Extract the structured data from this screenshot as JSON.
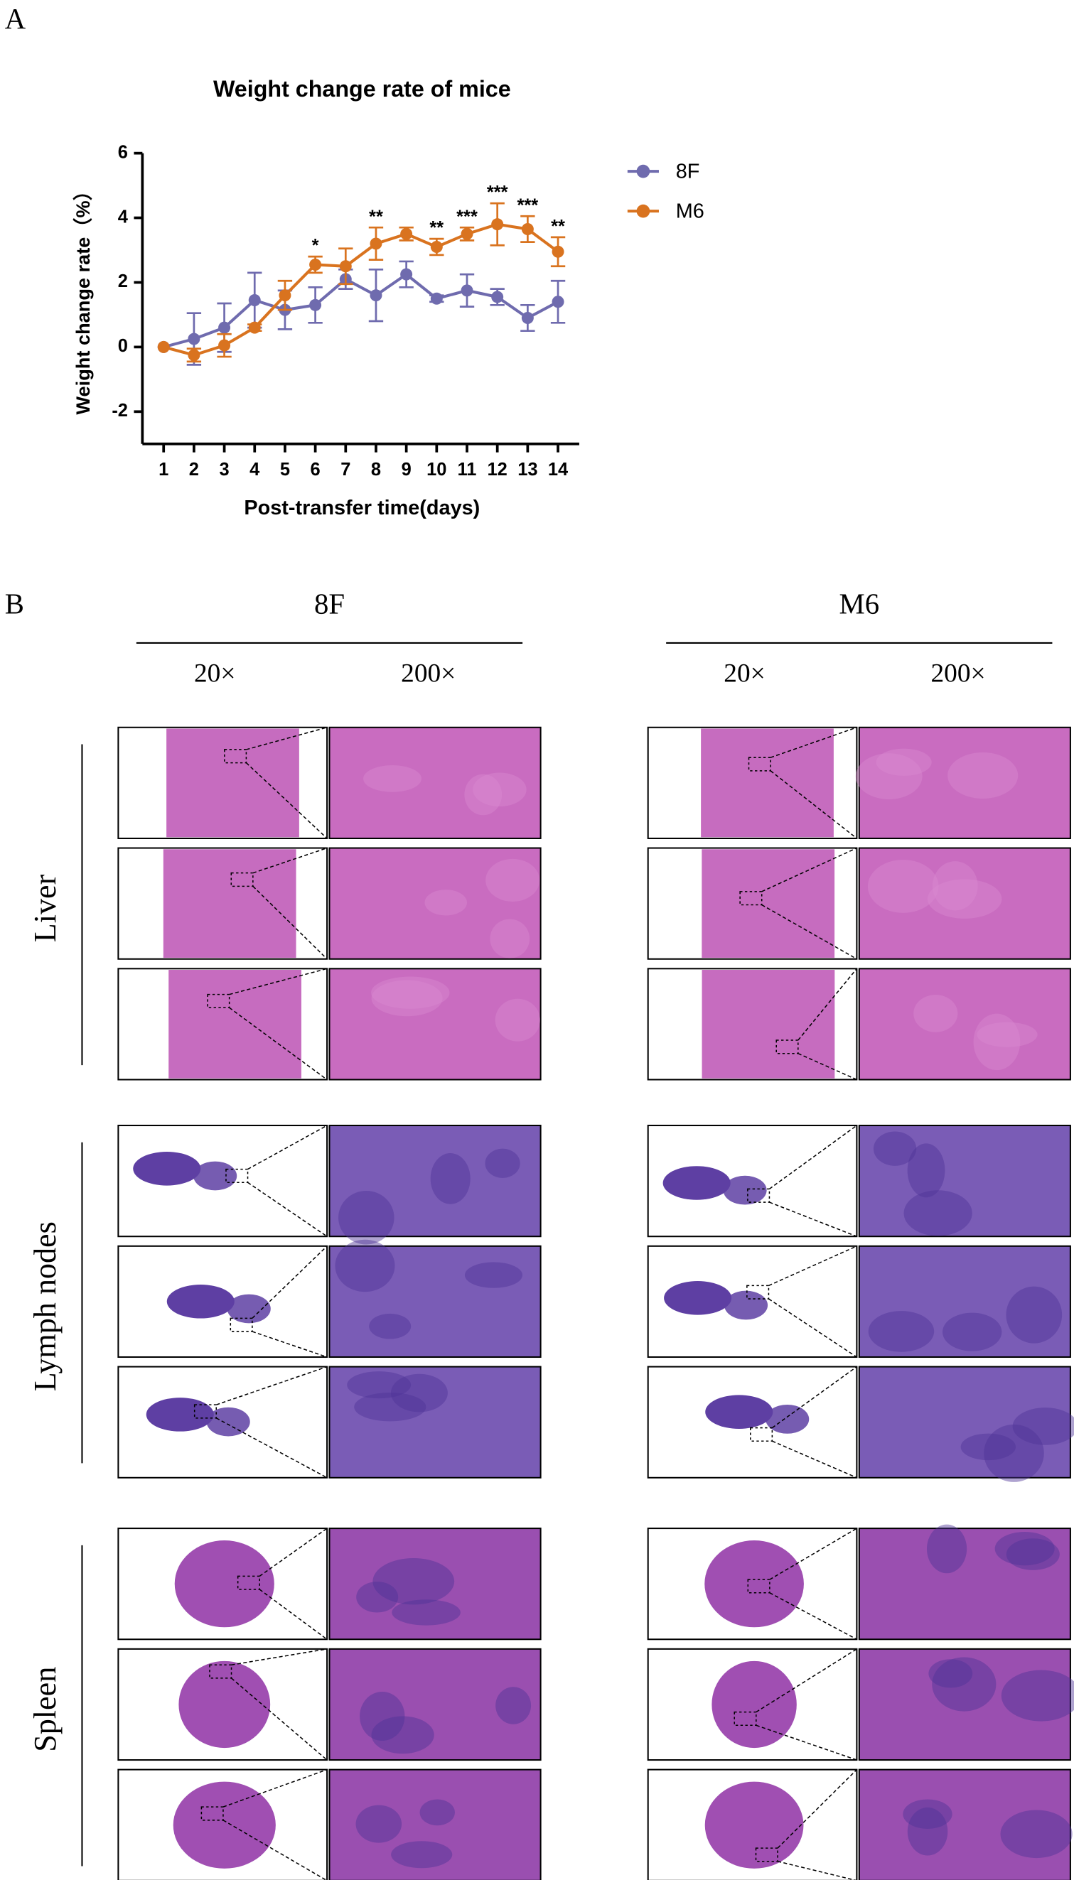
{
  "panel_a_label": "A",
  "chart_data": {
    "type": "line",
    "title": "Weight change rate of mice",
    "x_label": "Post-transfer time(days)",
    "y_label": "Weight change rate（%）",
    "x": [
      1,
      2,
      3,
      4,
      5,
      6,
      7,
      8,
      9,
      10,
      11,
      12,
      13,
      14
    ],
    "xlim": [
      0.3,
      14.7
    ],
    "xticks": [
      1,
      2,
      3,
      4,
      5,
      6,
      7,
      8,
      9,
      10,
      11,
      12,
      13,
      14
    ],
    "ylim": [
      -3,
      6
    ],
    "yticks": [
      -2,
      0,
      2,
      4,
      6
    ],
    "series": [
      {
        "name": "8F",
        "color": "#6f6bae",
        "values": [
          0,
          0.25,
          0.6,
          1.45,
          1.15,
          1.3,
          2.1,
          1.6,
          2.25,
          1.5,
          1.75,
          1.55,
          0.9,
          1.4
        ],
        "errors": [
          0,
          0.8,
          0.75,
          0.85,
          0.6,
          0.55,
          0.3,
          0.8,
          0.4,
          0.1,
          0.5,
          0.25,
          0.4,
          0.65
        ]
      },
      {
        "name": "M6",
        "color": "#d9731f",
        "values": [
          0,
          -0.25,
          0.05,
          0.6,
          1.6,
          2.55,
          2.5,
          3.2,
          3.5,
          3.1,
          3.5,
          3.8,
          3.65,
          2.95
        ],
        "errors": [
          0,
          0.2,
          0.35,
          0.1,
          0.45,
          0.25,
          0.55,
          0.5,
          0.2,
          0.25,
          0.2,
          0.65,
          0.4,
          0.45
        ]
      }
    ],
    "annotations": [
      {
        "x": 6,
        "text": "*"
      },
      {
        "x": 8,
        "text": "**"
      },
      {
        "x": 10,
        "text": "**"
      },
      {
        "x": 11,
        "text": "***"
      },
      {
        "x": 12,
        "text": "***"
      },
      {
        "x": 13,
        "text": "***"
      },
      {
        "x": 14,
        "text": "**"
      }
    ],
    "legend": "right"
  },
  "panel_b_label": "B",
  "histology": {
    "groups": [
      {
        "name": "8F",
        "magnifications": [
          "20×",
          "200×"
        ]
      },
      {
        "name": "M6",
        "magnifications": [
          "20×",
          "200×"
        ]
      }
    ],
    "tissues": [
      "Liver",
      "Lymph nodes",
      "Spleen"
    ]
  }
}
